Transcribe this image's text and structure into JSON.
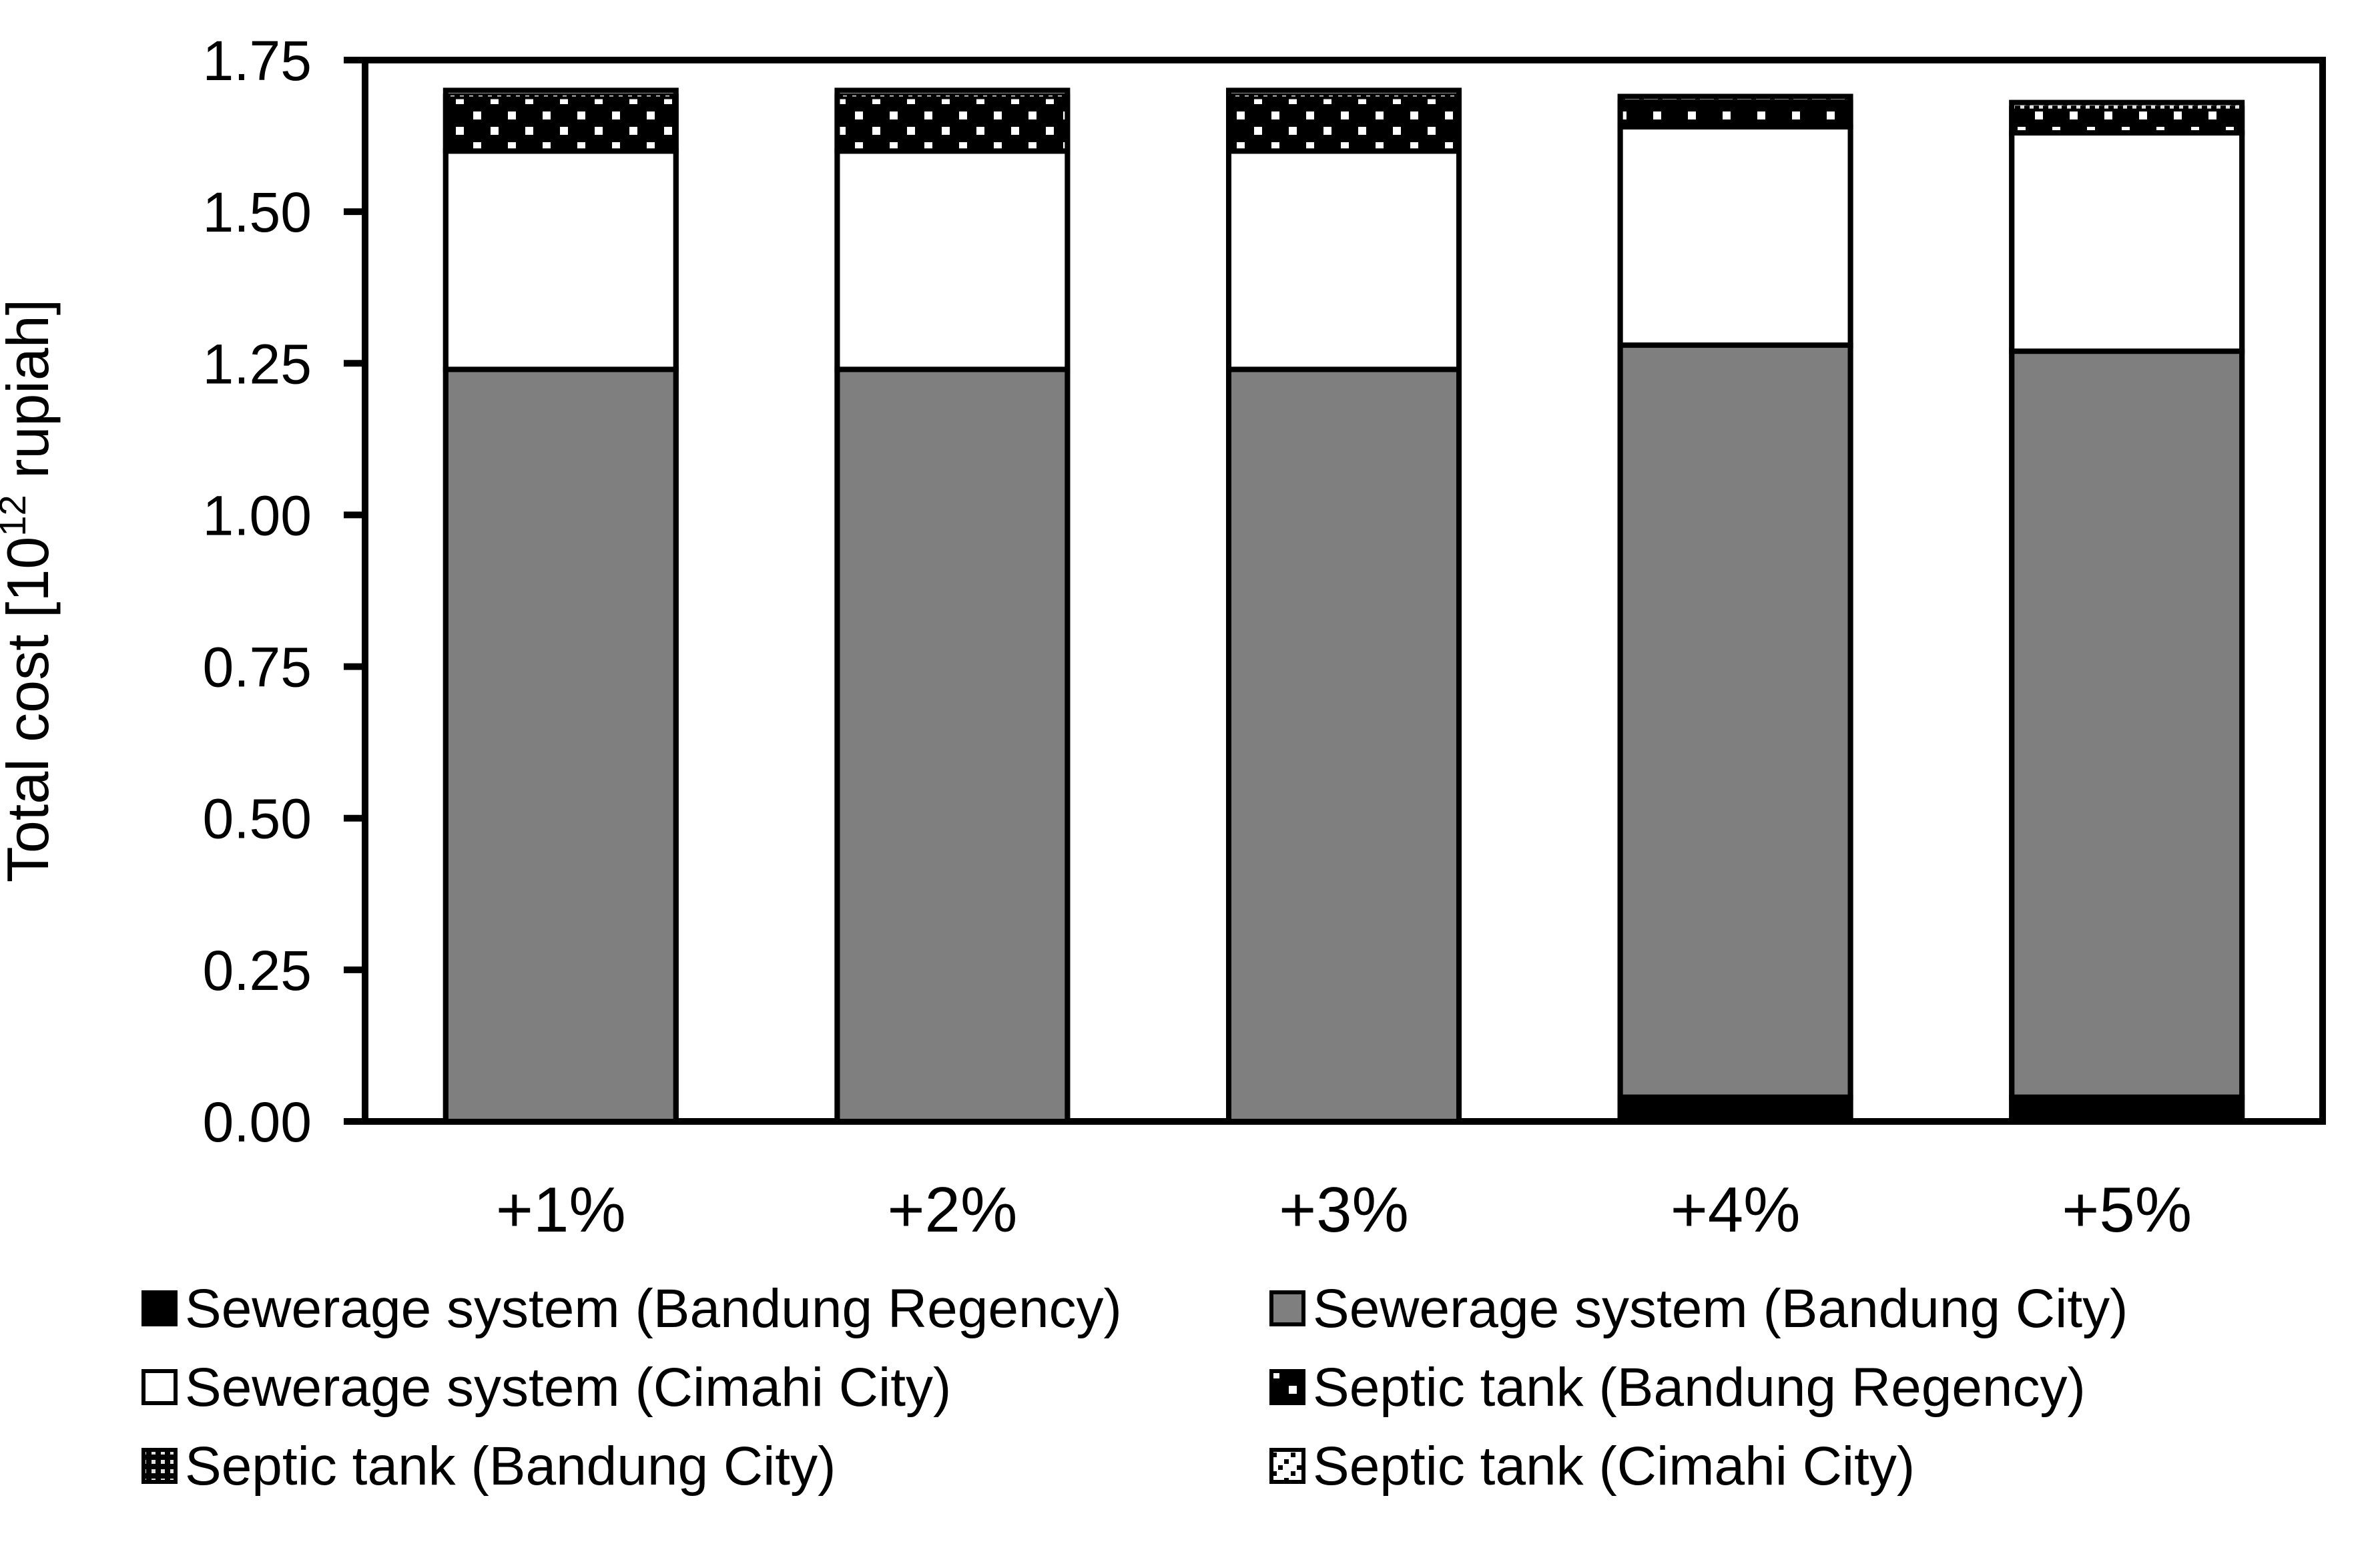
{
  "chart_data": {
    "type": "bar",
    "stacked": true,
    "title": "",
    "xlabel": "",
    "ylabel": "Total cost [10¹² rupiah]",
    "ylabel_parts": [
      "Total cost [10",
      "12",
      " rupiah]"
    ],
    "ylim": [
      0,
      1.75
    ],
    "ytick_step": 0.25,
    "ytick_labels": [
      "0.00",
      "0.25",
      "0.50",
      "0.75",
      "1.00",
      "1.25",
      "1.50",
      "1.75"
    ],
    "categories": [
      "+1%",
      "+2%",
      "+3%",
      "+4%",
      "+5%"
    ],
    "series": [
      {
        "name": "Sewerage system (Bandung Regency)",
        "style": "solid-black",
        "values": [
          0,
          0,
          0,
          0.04,
          0.04
        ]
      },
      {
        "name": "Sewerage system (Bandung City)",
        "style": "solid-gray",
        "values": [
          1.24,
          1.24,
          1.24,
          1.24,
          1.23
        ]
      },
      {
        "name": "Sewerage system (Cimahi City)",
        "style": "solid-white",
        "values": [
          0.36,
          0.36,
          0.36,
          0.36,
          0.36
        ]
      },
      {
        "name": "Septic tank (Bandung Regency)",
        "style": "dots-white-on-black",
        "values": [
          0.09,
          0.09,
          0.09,
          0.04,
          0.04
        ]
      },
      {
        "name": "Septic tank (Bandung City)",
        "style": "grid-gray-on-black",
        "values": [
          0.005,
          0.005,
          0.005,
          0.005,
          0.005
        ]
      },
      {
        "name": "Septic tank (Cimahi City)",
        "style": "diag-dots-black-on-white",
        "values": [
          0.005,
          0.005,
          0.005,
          0.005,
          0.005
        ]
      }
    ],
    "stack_totals": [
      1.7,
      1.7,
      1.7,
      1.69,
      1.68
    ],
    "palette": {
      "black": "#000000",
      "gray": "#7f7f7f",
      "white": "#ffffff",
      "light_dot": "#e0e0e0"
    },
    "grid": false,
    "legend_position": "bottom",
    "legend_columns": 2
  }
}
